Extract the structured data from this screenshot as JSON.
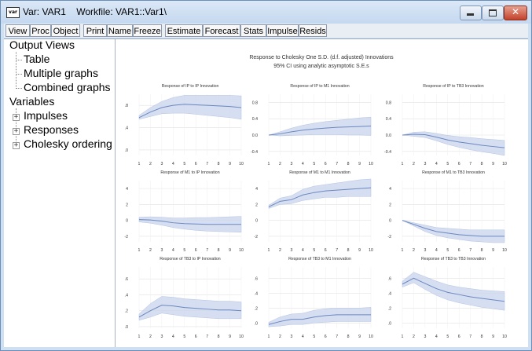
{
  "window": {
    "title": "Var: VAR1    Workfile: VAR1::Var1\\",
    "icon_text": "var",
    "close_glyph": "✕"
  },
  "toolbar": {
    "buttons": [
      "View",
      "Proc",
      "Object",
      "Print",
      "Name",
      "Freeze",
      "Estimate",
      "Forecast",
      "Stats",
      "Impulse",
      "Resids"
    ]
  },
  "tree": {
    "output_views": "Output Views",
    "table": "Table",
    "multiple_graphs": "Multiple graphs",
    "combined_graphs": "Combined graphs",
    "variables": "Variables",
    "impulses": "Impulses",
    "responses": "Responses",
    "cholesky": "Cholesky ordering",
    "expand_glyph": "+"
  },
  "graph": {
    "title": "Response to Cholesky One S.D. (d.f. adjusted) Innovations",
    "subtitle": "95% CI using analytic asymptotic S.E.s"
  },
  "chart_data": [
    {
      "type": "line",
      "title": "Response of IP to IP Innovation",
      "x": [
        1,
        2,
        3,
        4,
        5,
        6,
        7,
        8,
        9,
        10
      ],
      "series": [
        {
          "values": [
            0.58,
            0.68,
            0.76,
            0.8,
            0.82,
            0.81,
            0.8,
            0.79,
            0.78,
            0.76
          ]
        }
      ],
      "band_lower": [
        0.55,
        0.6,
        0.65,
        0.66,
        0.66,
        0.64,
        0.62,
        0.6,
        0.58,
        0.55
      ],
      "band_upper": [
        0.62,
        0.76,
        0.87,
        0.94,
        0.98,
        0.98,
        0.98,
        0.98,
        0.98,
        0.97
      ],
      "yticks": [
        0.0,
        0.4,
        0.8
      ],
      "ytick_labels": [
        ".0",
        ".4",
        ".8"
      ],
      "ylim": [
        -0.1,
        1.0
      ],
      "color": "#6c86bf"
    },
    {
      "type": "line",
      "title": "Response of IP to M1 Innovation",
      "x": [
        1,
        2,
        3,
        4,
        5,
        6,
        7,
        8,
        9,
        10
      ],
      "series": [
        {
          "values": [
            0.0,
            0.03,
            0.08,
            0.12,
            0.15,
            0.17,
            0.19,
            0.2,
            0.21,
            0.22
          ]
        }
      ],
      "band_lower": [
        0.0,
        -0.02,
        -0.01,
        0.0,
        0.01,
        0.01,
        0.01,
        0.0,
        0.0,
        -0.01
      ],
      "band_upper": [
        0.0,
        0.08,
        0.17,
        0.24,
        0.29,
        0.33,
        0.36,
        0.39,
        0.42,
        0.44
      ],
      "yticks": [
        -0.4,
        0.0,
        0.4,
        0.8
      ],
      "ytick_labels": [
        "-0.4",
        "0.0",
        "0.4",
        "0.8"
      ],
      "ylim": [
        -0.5,
        1.0
      ],
      "color": "#6c86bf"
    },
    {
      "type": "line",
      "title": "Response of IP to TB3 Innovation",
      "x": [
        1,
        2,
        3,
        4,
        5,
        6,
        7,
        8,
        9,
        10
      ],
      "series": [
        {
          "values": [
            0.0,
            0.02,
            0.01,
            -0.05,
            -0.12,
            -0.17,
            -0.21,
            -0.25,
            -0.28,
            -0.31
          ]
        }
      ],
      "band_lower": [
        0.0,
        -0.03,
        -0.06,
        -0.14,
        -0.23,
        -0.3,
        -0.36,
        -0.41,
        -0.45,
        -0.5
      ],
      "band_upper": [
        0.0,
        0.07,
        0.08,
        0.04,
        -0.01,
        -0.04,
        -0.06,
        -0.09,
        -0.11,
        -0.13
      ],
      "yticks": [
        -0.4,
        0.0,
        0.4,
        0.8
      ],
      "ytick_labels": [
        "-0.4",
        "0.0",
        "0.4",
        "0.8"
      ],
      "ylim": [
        -0.5,
        1.0
      ],
      "color": "#6c86bf"
    },
    {
      "type": "line",
      "title": "Response of M1 to IP Innovation",
      "x": [
        1,
        2,
        3,
        4,
        5,
        6,
        7,
        8,
        9,
        10
      ],
      "series": [
        {
          "values": [
            0.1,
            0.05,
            -0.1,
            -0.3,
            -0.4,
            -0.45,
            -0.5,
            -0.5,
            -0.5,
            -0.5
          ]
        }
      ],
      "band_lower": [
        -0.2,
        -0.35,
        -0.6,
        -0.9,
        -1.1,
        -1.25,
        -1.35,
        -1.4,
        -1.45,
        -1.5
      ],
      "band_upper": [
        0.4,
        0.45,
        0.4,
        0.3,
        0.3,
        0.35,
        0.35,
        0.4,
        0.45,
        0.5
      ],
      "yticks": [
        -2,
        0,
        2,
        4
      ],
      "ytick_labels": [
        "-2",
        "0",
        "2",
        "4"
      ],
      "ylim": [
        -2.7,
        5.0
      ],
      "color": "#6c86bf"
    },
    {
      "type": "line",
      "title": "Response of M1 to M1 Innovation",
      "x": [
        1,
        2,
        3,
        4,
        5,
        6,
        7,
        8,
        9,
        10
      ],
      "series": [
        {
          "values": [
            1.7,
            2.4,
            2.6,
            3.2,
            3.5,
            3.7,
            3.8,
            3.9,
            4.0,
            4.1
          ]
        }
      ],
      "band_lower": [
        1.5,
        2.0,
        2.1,
        2.5,
        2.7,
        2.9,
        2.9,
        3.0,
        3.0,
        3.0
      ],
      "band_upper": [
        1.9,
        2.8,
        3.1,
        3.9,
        4.3,
        4.5,
        4.7,
        4.9,
        5.1,
        5.2
      ],
      "yticks": [
        -2,
        0,
        2,
        4
      ],
      "ytick_labels": [
        "-2",
        "0",
        "2",
        "4"
      ],
      "ylim": [
        -2.7,
        5.0
      ],
      "color": "#6c86bf"
    },
    {
      "type": "line",
      "title": "Response of M1 to TB3 Innovation",
      "x": [
        1,
        2,
        3,
        4,
        5,
        6,
        7,
        8,
        9,
        10
      ],
      "series": [
        {
          "values": [
            0.0,
            -0.5,
            -1.0,
            -1.4,
            -1.6,
            -1.8,
            -1.9,
            -2.0,
            -2.0,
            -2.0
          ]
        }
      ],
      "band_lower": [
        0.0,
        -0.7,
        -1.4,
        -1.9,
        -2.2,
        -2.4,
        -2.6,
        -2.7,
        -2.8,
        -2.8
      ],
      "band_upper": [
        0.0,
        -0.3,
        -0.6,
        -0.9,
        -1.0,
        -1.1,
        -1.2,
        -1.2,
        -1.2,
        -1.2
      ],
      "yticks": [
        -2,
        0,
        2,
        4
      ],
      "ytick_labels": [
        "-2",
        "0",
        "2",
        "4"
      ],
      "ylim": [
        -2.7,
        5.0
      ],
      "color": "#6c86bf"
    },
    {
      "type": "line",
      "title": "Response of TB3 to IP Innovation",
      "x": [
        1,
        2,
        3,
        4,
        5,
        6,
        7,
        8,
        9,
        10
      ],
      "series": [
        {
          "values": [
            0.12,
            0.2,
            0.27,
            0.26,
            0.24,
            0.23,
            0.22,
            0.21,
            0.21,
            0.2
          ]
        }
      ],
      "band_lower": [
        0.08,
        0.12,
        0.17,
        0.15,
        0.13,
        0.12,
        0.11,
        0.1,
        0.1,
        0.1
      ],
      "band_upper": [
        0.16,
        0.29,
        0.38,
        0.37,
        0.35,
        0.34,
        0.33,
        0.32,
        0.32,
        0.31
      ],
      "yticks": [
        0.0,
        0.2,
        0.4,
        0.6
      ],
      "ytick_labels": [
        ".0",
        ".2",
        ".4",
        ".6"
      ],
      "ylim": [
        -0.02,
        0.75
      ],
      "color": "#6c86bf"
    },
    {
      "type": "line",
      "title": "Response of TB3 to M1 Innovation",
      "x": [
        1,
        2,
        3,
        4,
        5,
        6,
        7,
        8,
        9,
        10
      ],
      "series": [
        {
          "values": [
            -0.02,
            0.02,
            0.05,
            0.05,
            0.08,
            0.1,
            0.11,
            0.11,
            0.11,
            0.11
          ]
        }
      ],
      "band_lower": [
        -0.05,
        -0.04,
        -0.02,
        -0.02,
        0.0,
        0.01,
        0.02,
        0.02,
        0.02,
        0.02
      ],
      "band_upper": [
        0.01,
        0.08,
        0.12,
        0.13,
        0.17,
        0.19,
        0.2,
        0.2,
        0.2,
        0.21
      ],
      "yticks": [
        0.0,
        0.2,
        0.4,
        0.6
      ],
      "ytick_labels": [
        ".0",
        ".2",
        ".4",
        ".6"
      ],
      "ylim": [
        -0.07,
        0.75
      ],
      "color": "#6c86bf"
    },
    {
      "type": "line",
      "title": "Response of TB3 to TB3 Innovation",
      "x": [
        1,
        2,
        3,
        4,
        5,
        6,
        7,
        8,
        9,
        10
      ],
      "series": [
        {
          "values": [
            0.52,
            0.6,
            0.53,
            0.46,
            0.41,
            0.38,
            0.35,
            0.33,
            0.31,
            0.29
          ]
        }
      ],
      "band_lower": [
        0.48,
        0.54,
        0.45,
        0.37,
        0.31,
        0.27,
        0.24,
        0.21,
        0.19,
        0.17
      ],
      "band_upper": [
        0.56,
        0.68,
        0.62,
        0.56,
        0.51,
        0.48,
        0.46,
        0.44,
        0.43,
        0.42
      ],
      "yticks": [
        0.0,
        0.2,
        0.4,
        0.6
      ],
      "ytick_labels": [
        ".0",
        ".2",
        ".4",
        ".6"
      ],
      "ylim": [
        -0.07,
        0.75
      ],
      "color": "#6c86bf"
    }
  ]
}
